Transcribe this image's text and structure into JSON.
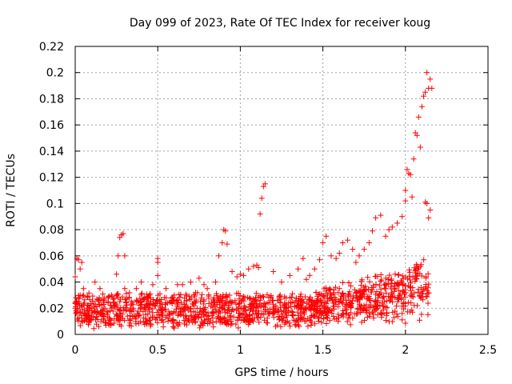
{
  "chart_data": {
    "type": "scatter",
    "title": "Day 099 of 2023, Rate Of TEC Index for receiver koug",
    "xlabel": "GPS time / hours",
    "ylabel": "ROTI / TECUs",
    "xlim": [
      0,
      2.5
    ],
    "ylim": [
      0,
      0.22
    ],
    "xticks": [
      0,
      0.5,
      1,
      1.5,
      2,
      2.5
    ],
    "xtick_labels": [
      "0",
      "0.5",
      "1",
      "1.5",
      "2",
      "2.5"
    ],
    "yticks": [
      0,
      0.02,
      0.04,
      0.06,
      0.08,
      0.1,
      0.12,
      0.14,
      0.16,
      0.18,
      0.2,
      0.22
    ],
    "ytick_labels": [
      "0",
      "0.02",
      "0.04",
      "0.06",
      "0.08",
      "0.1",
      "0.12",
      "0.14",
      "0.16",
      "0.18",
      "0.2",
      "0.22"
    ],
    "grid": true,
    "marker": "+",
    "color": "#ff0000",
    "series": [
      {
        "x": [
          0.0,
          0.01,
          0.02,
          0.03,
          0.04,
          0.05,
          0.0,
          0.01,
          0.02,
          0.03,
          0.05,
          0.07,
          0.1,
          0.12,
          0.15,
          0.18,
          0.2,
          0.22,
          0.25,
          0.26,
          0.27,
          0.28,
          0.29,
          0.3,
          0.25,
          0.27,
          0.3,
          0.35,
          0.37,
          0.4,
          0.42,
          0.45,
          0.47,
          0.5,
          0.5,
          0.5,
          0.55,
          0.6,
          0.62,
          0.65,
          0.7,
          0.75,
          0.78,
          0.8,
          0.85,
          0.87,
          0.89,
          0.9,
          0.91,
          0.92,
          0.95,
          0.98,
          1.0,
          1.02,
          1.05,
          1.08,
          1.1,
          1.11,
          1.12,
          1.13,
          1.14,
          1.15,
          1.2,
          1.25,
          1.3,
          1.35,
          1.38,
          1.4,
          1.42,
          1.45,
          1.48,
          1.5,
          1.52,
          1.55,
          1.58,
          1.6,
          1.62,
          1.65,
          1.68,
          1.7,
          1.72,
          1.75,
          1.78,
          1.8,
          1.82,
          1.85,
          1.88,
          1.9,
          1.92,
          1.95,
          1.98,
          2.0,
          2.0,
          2.01,
          2.02,
          2.03,
          2.04,
          2.05,
          2.06,
          2.07,
          2.08,
          2.09,
          2.1,
          2.11,
          2.12,
          2.13,
          2.14,
          2.15,
          2.16,
          2.12,
          2.13,
          2.14,
          2.15
        ],
        "y": [
          0.044,
          0.058,
          0.057,
          0.05,
          0.055,
          0.03,
          0.02,
          0.025,
          0.028,
          0.03,
          0.035,
          0.02,
          0.018,
          0.04,
          0.035,
          0.02,
          0.025,
          0.03,
          0.046,
          0.06,
          0.074,
          0.076,
          0.077,
          0.06,
          0.03,
          0.025,
          0.035,
          0.02,
          0.035,
          0.04,
          0.028,
          0.03,
          0.038,
          0.055,
          0.058,
          0.045,
          0.035,
          0.03,
          0.038,
          0.038,
          0.04,
          0.043,
          0.038,
          0.035,
          0.04,
          0.06,
          0.07,
          0.08,
          0.079,
          0.069,
          0.048,
          0.044,
          0.046,
          0.045,
          0.05,
          0.052,
          0.053,
          0.051,
          0.092,
          0.104,
          0.113,
          0.115,
          0.048,
          0.04,
          0.045,
          0.05,
          0.058,
          0.042,
          0.045,
          0.05,
          0.057,
          0.07,
          0.075,
          0.06,
          0.058,
          0.062,
          0.07,
          0.072,
          0.065,
          0.055,
          0.06,
          0.065,
          0.07,
          0.079,
          0.089,
          0.091,
          0.075,
          0.08,
          0.082,
          0.085,
          0.09,
          0.102,
          0.11,
          0.126,
          0.123,
          0.122,
          0.105,
          0.134,
          0.154,
          0.152,
          0.166,
          0.143,
          0.174,
          0.182,
          0.185,
          0.2,
          0.188,
          0.195,
          0.188,
          0.101,
          0.1,
          0.089,
          0.095
        ],
        "x_band": [
          0.0,
          2.15
        ],
        "y_band": [
          0.0,
          0.04
        ]
      }
    ]
  }
}
